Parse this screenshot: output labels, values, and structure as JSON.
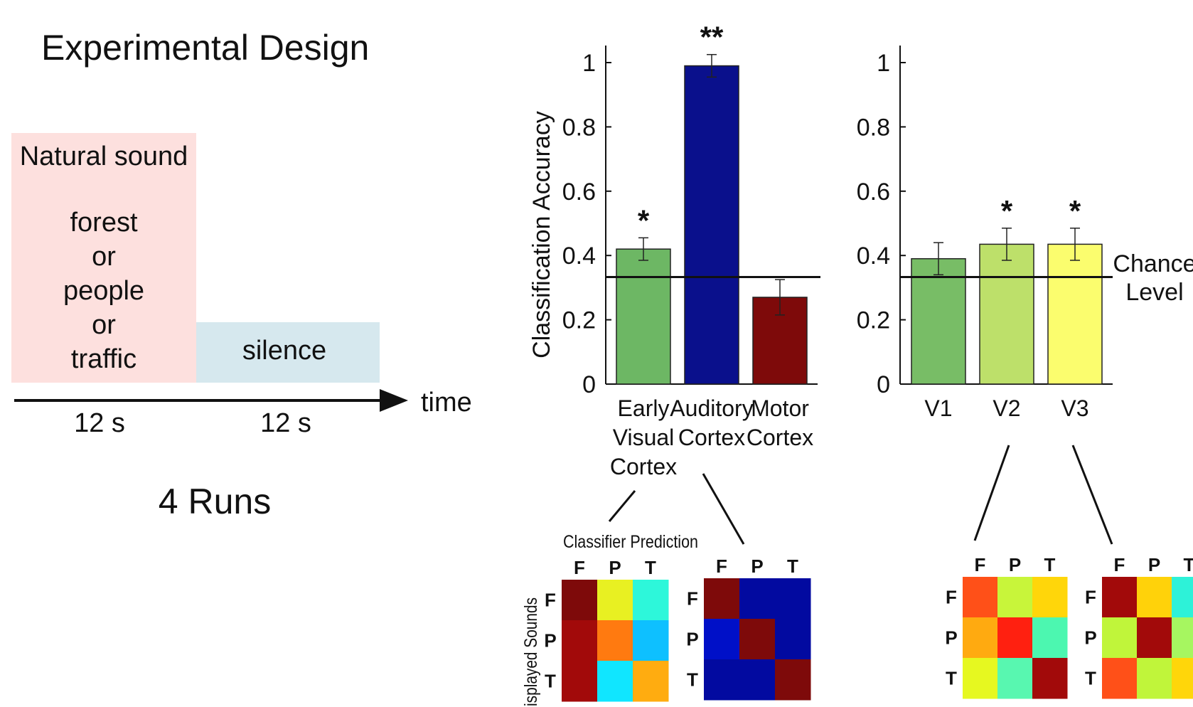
{
  "design": {
    "title": "Experimental Design",
    "sound_block": {
      "heading": "Natural sound",
      "lines": [
        "forest",
        "or",
        "people",
        "or",
        "traffic"
      ],
      "color": "#fde0de"
    },
    "silence_block": {
      "label": "silence",
      "color": "#d6e8ee"
    },
    "time_label": "time",
    "durations": [
      "12 s",
      "12 s"
    ],
    "runs": "4 Runs"
  },
  "chart_data": [
    {
      "type": "bar",
      "categories": [
        "Early Visual Cortex",
        "Auditory Cortex",
        "Motor Cortex"
      ],
      "category_lines": [
        [
          "Early",
          "Visual",
          "Cortex"
        ],
        [
          "Auditory",
          "Cortex"
        ],
        [
          "Motor",
          "Cortex"
        ]
      ],
      "values": [
        0.42,
        0.99,
        0.27
      ],
      "errors": [
        0.035,
        0.035,
        0.055
      ],
      "significance": [
        "*",
        "**",
        ""
      ],
      "colors": [
        "#6db764",
        "#0a108c",
        "#7e0a0a"
      ],
      "ylabel": "Classification Accuracy",
      "ylim": [
        0,
        1
      ],
      "yticks": [
        "0",
        "0.2",
        "0.4",
        "0.6",
        "0.8",
        "1"
      ],
      "chance_level": 0.333
    },
    {
      "type": "bar",
      "categories": [
        "V1",
        "V2",
        "V3"
      ],
      "values": [
        0.39,
        0.435,
        0.435
      ],
      "errors": [
        0.05,
        0.05,
        0.05
      ],
      "significance": [
        "",
        "*",
        "*"
      ],
      "colors": [
        "#78bd66",
        "#bde06a",
        "#fbfd6e"
      ],
      "ylim": [
        0,
        1
      ],
      "yticks": [
        "0",
        "0.2",
        "0.4",
        "0.6",
        "0.8",
        "1"
      ],
      "chance_level": 0.333,
      "chance_label_lines": [
        "Chance",
        "Level"
      ]
    },
    {
      "type": "heatmap",
      "name": "Early Visual Cortex",
      "caption_top": "Classifier Prediction",
      "caption_left": "Displayed Sounds",
      "labels": [
        "F",
        "P",
        "T"
      ],
      "cells": [
        [
          "#7e0a0a",
          "#e8f022",
          "#2df7da"
        ],
        [
          "#a20a0a",
          "#ff7a10",
          "#0ec0ff"
        ],
        [
          "#a20a0a",
          "#10e6ff",
          "#ffac10"
        ]
      ]
    },
    {
      "type": "heatmap",
      "name": "Auditory Cortex",
      "labels": [
        "F",
        "P",
        "T"
      ],
      "cells": [
        [
          "#7e0a0a",
          "#020aa0",
          "#020aa0"
        ],
        [
          "#0010c8",
          "#7e0a0a",
          "#020aa0"
        ],
        [
          "#020aa0",
          "#020aa0",
          "#7e0a0a"
        ]
      ]
    },
    {
      "type": "heatmap",
      "name": "V2",
      "labels": [
        "F",
        "P",
        "T"
      ],
      "cells": [
        [
          "#ff5018",
          "#c8f53a",
          "#ffd60a"
        ],
        [
          "#ffaa10",
          "#ff2010",
          "#4cf7b0"
        ],
        [
          "#e6f820",
          "#58f7b0",
          "#a20a0a"
        ]
      ]
    },
    {
      "type": "heatmap",
      "name": "V3",
      "labels": [
        "F",
        "P",
        "T"
      ],
      "cells": [
        [
          "#a20a0a",
          "#ffd20a",
          "#2df2d8"
        ],
        [
          "#c0f53a",
          "#a20a0a",
          "#a6f660"
        ],
        [
          "#ff5018",
          "#c0f53a",
          "#ffd60a"
        ]
      ]
    }
  ]
}
